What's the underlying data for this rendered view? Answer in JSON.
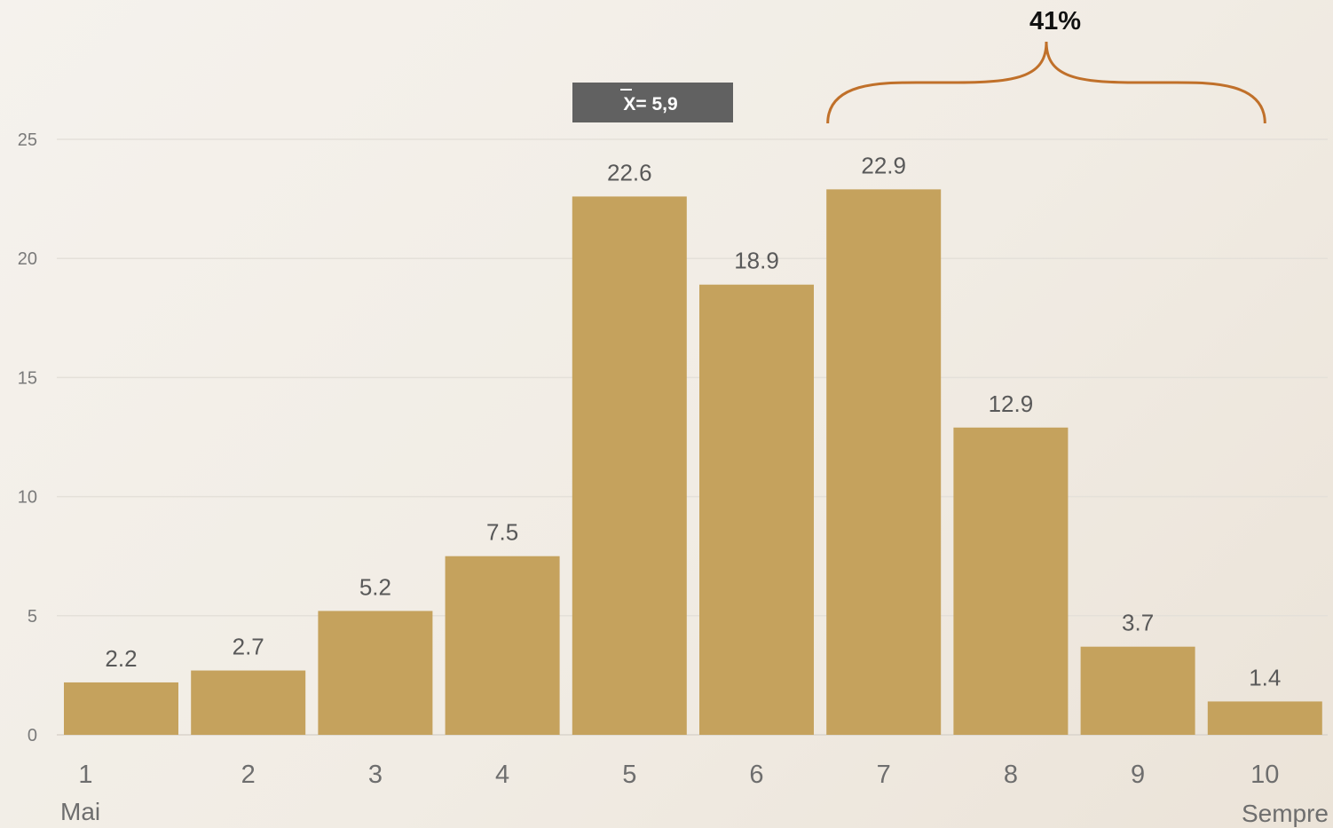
{
  "chart_data": {
    "type": "bar",
    "categories": [
      "1",
      "2",
      "3",
      "4",
      "5",
      "6",
      "7",
      "8",
      "9",
      "10"
    ],
    "values": [
      2.2,
      2.7,
      5.2,
      7.5,
      22.6,
      18.9,
      22.9,
      12.9,
      3.7,
      1.4
    ],
    "data_labels": [
      "2.2",
      "2.7",
      "5.2",
      "7.5",
      "22.6",
      "18.9",
      "22.9",
      "12.9",
      "3.7",
      "1.4"
    ],
    "ylim": [
      0,
      25
    ],
    "yticks": [
      0,
      5,
      10,
      15,
      20,
      25
    ],
    "grid": true,
    "scale_end_labels": {
      "low": "Mai",
      "high": "Sempre"
    },
    "annotations": {
      "mean_label": "X= 5,9",
      "brace": {
        "from_category": "7",
        "to_category": "10",
        "label": "41%"
      }
    },
    "colors": {
      "bar": "#c5a25d",
      "brace": "#c0702a",
      "mean_box": "#616161",
      "grid": "#e4e0d9"
    }
  }
}
